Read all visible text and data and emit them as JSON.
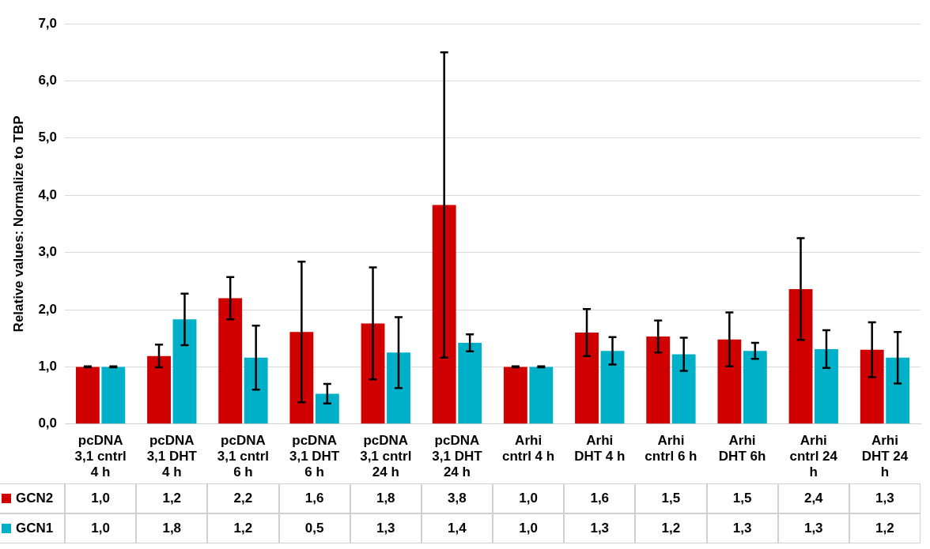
{
  "chart_data": {
    "type": "bar",
    "ylabel": "Relative values: Normalize to TBP",
    "categories": [
      "pcDNA 3,1 cntrl 4 h",
      "pcDNA 3,1 DHT 4 h",
      "pcDNA 3,1 cntrl 6 h",
      "pcDNA 3,1 DHT 6 h",
      "pcDNA 3,1 cntrl 24 h",
      "pcDNA 3,1 DHT 24 h",
      "Arhi cntrl 4 h",
      "Arhi DHT 4 h",
      "Arhi cntrl 6 h",
      "Arhi DHT 6h",
      "Arhi cntrl 24 h",
      "Arhi DHT 24 h"
    ],
    "series": [
      {
        "name": "GCN2",
        "color": "#d00000",
        "values": [
          1.0,
          1.19,
          2.2,
          1.61,
          1.76,
          3.83,
          1.0,
          1.6,
          1.53,
          1.48,
          2.36,
          1.3
        ],
        "errors": [
          0.01,
          0.2,
          0.37,
          1.23,
          0.98,
          2.67,
          0.01,
          0.41,
          0.28,
          0.47,
          0.89,
          0.48
        ],
        "value_labels": [
          "1,0",
          "1,2",
          "2,2",
          "1,6",
          "1,8",
          "3,8",
          "1,0",
          "1,6",
          "1,5",
          "1,5",
          "2,4",
          "1,3"
        ]
      },
      {
        "name": "GCN1",
        "color": "#00b0c8",
        "values": [
          1.0,
          1.83,
          1.16,
          0.53,
          1.25,
          1.42,
          1.0,
          1.28,
          1.22,
          1.28,
          1.31,
          1.16
        ],
        "errors": [
          0.01,
          0.45,
          0.56,
          0.17,
          0.62,
          0.15,
          0.01,
          0.24,
          0.29,
          0.14,
          0.33,
          0.45
        ],
        "value_labels": [
          "1,0",
          "1,8",
          "1,2",
          "0,5",
          "1,3",
          "1,4",
          "1,0",
          "1,3",
          "1,2",
          "1,3",
          "1,3",
          "1,2"
        ]
      }
    ],
    "ylim": [
      0,
      7
    ],
    "yticks": [
      {
        "value": 0,
        "label": "0,0"
      },
      {
        "value": 1,
        "label": "1,0"
      },
      {
        "value": 2,
        "label": "2,0"
      },
      {
        "value": 3,
        "label": "3,0"
      },
      {
        "value": 4,
        "label": "4,0"
      },
      {
        "value": 5,
        "label": "5,0"
      },
      {
        "value": 6,
        "label": "6,0"
      },
      {
        "value": 7,
        "label": "7,0"
      }
    ],
    "grid": "y",
    "legend": "bottom"
  }
}
